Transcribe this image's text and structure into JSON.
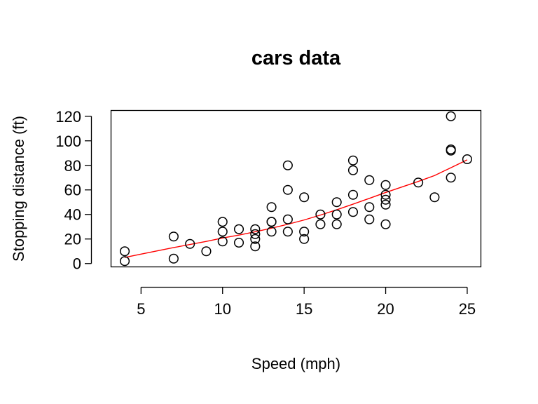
{
  "chart_data": {
    "type": "scatter",
    "title": "cars data",
    "xlabel": "Speed (mph)",
    "ylabel": "Stopping distance (ft)",
    "xlim": [
      3.16,
      25.84
    ],
    "ylim": [
      -2.72,
      124.72
    ],
    "xticks": [
      5,
      10,
      15,
      20,
      25
    ],
    "yticks": [
      0,
      20,
      40,
      60,
      80,
      100,
      120
    ],
    "grid": false,
    "legend": "none",
    "point_color": "#000000",
    "line_color": "#ff0000",
    "points": [
      [
        4,
        2
      ],
      [
        4,
        10
      ],
      [
        7,
        4
      ],
      [
        7,
        22
      ],
      [
        8,
        16
      ],
      [
        9,
        10
      ],
      [
        10,
        18
      ],
      [
        10,
        26
      ],
      [
        10,
        34
      ],
      [
        11,
        17
      ],
      [
        11,
        28
      ],
      [
        12,
        14
      ],
      [
        12,
        20
      ],
      [
        12,
        24
      ],
      [
        12,
        28
      ],
      [
        13,
        26
      ],
      [
        13,
        34
      ],
      [
        13,
        34
      ],
      [
        13,
        46
      ],
      [
        14,
        26
      ],
      [
        14,
        36
      ],
      [
        14,
        60
      ],
      [
        14,
        80
      ],
      [
        15,
        20
      ],
      [
        15,
        26
      ],
      [
        15,
        54
      ],
      [
        16,
        32
      ],
      [
        16,
        40
      ],
      [
        17,
        32
      ],
      [
        17,
        40
      ],
      [
        17,
        50
      ],
      [
        18,
        42
      ],
      [
        18,
        56
      ],
      [
        18,
        76
      ],
      [
        18,
        84
      ],
      [
        19,
        36
      ],
      [
        19,
        46
      ],
      [
        19,
        68
      ],
      [
        20,
        32
      ],
      [
        20,
        48
      ],
      [
        20,
        52
      ],
      [
        20,
        56
      ],
      [
        20,
        64
      ],
      [
        22,
        66
      ],
      [
        23,
        54
      ],
      [
        24,
        70
      ],
      [
        24,
        92
      ],
      [
        24,
        93
      ],
      [
        24,
        120
      ],
      [
        25,
        85
      ]
    ],
    "series": [
      {
        "type": "line",
        "x": [
          4,
          5,
          7,
          8,
          9,
          10,
          11,
          12,
          13,
          14,
          15,
          16,
          17,
          18,
          19,
          20,
          22,
          23,
          24,
          25
        ],
        "values": [
          4.96,
          7.7,
          13.0,
          15.5,
          18.0,
          20.8,
          23.2,
          25.9,
          28.8,
          32.0,
          35.5,
          39.5,
          43.8,
          48.4,
          53.1,
          57.9,
          66.9,
          71.7,
          78.1,
          84.5
        ]
      }
    ]
  }
}
